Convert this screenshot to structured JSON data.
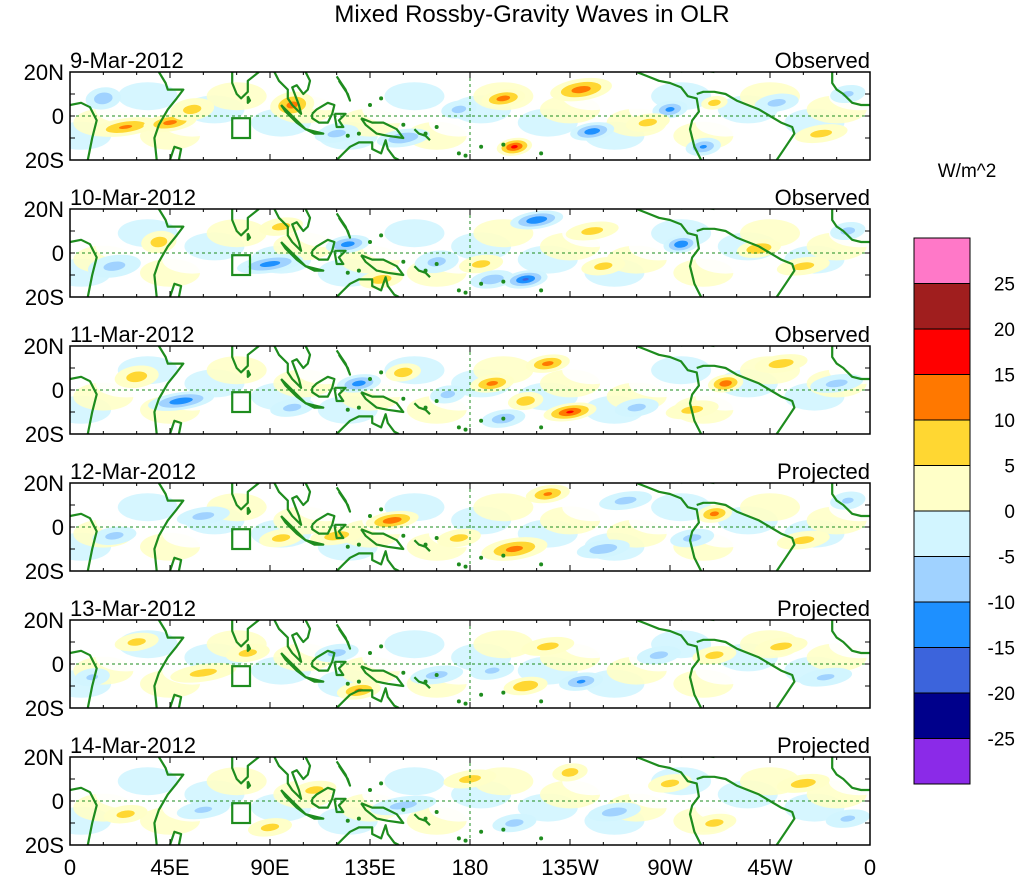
{
  "chart_data": {
    "type": "heatmap",
    "title": "Mixed Rossby-Gravity Waves in OLR",
    "units_label": "W/m^2",
    "x_tick_labels": [
      "0",
      "45E",
      "90E",
      "135E",
      "180",
      "135W",
      "90W",
      "45W",
      "0"
    ],
    "x_ticks_deg": [
      0,
      45,
      90,
      135,
      180,
      225,
      270,
      315,
      360
    ],
    "y_tick_labels": [
      "20N",
      "0",
      "20S"
    ],
    "y_ticks_deg": [
      20,
      0,
      -20
    ],
    "xlim": [
      0,
      360
    ],
    "ylim": [
      -20,
      20
    ],
    "colorbar": {
      "levels": [
        -25,
        -20,
        -15,
        -10,
        -5,
        0,
        5,
        10,
        15,
        20,
        25
      ],
      "tick_labels": [
        "25",
        "20",
        "15",
        "10",
        "5",
        "0",
        "-5",
        "-10",
        "-15",
        "-20",
        "-25"
      ],
      "colors": [
        "#8b2ae8",
        "#00008b",
        "#3c64dc",
        "#1e90ff",
        "#a0d2ff",
        "#d2f5ff",
        "#ffffc8",
        "#ffd732",
        "#ff7800",
        "#ff0000",
        "#a01e1e",
        "#ff78c8"
      ]
    },
    "panels": [
      {
        "date": "9-Mar-2012",
        "label": "Observed",
        "blobs": [
          [
            100,
            5,
            10,
            6,
            11
          ],
          [
            150,
            -10,
            12,
            4,
            -9
          ],
          [
            195,
            8,
            10,
            4,
            12
          ],
          [
            200,
            -14,
            8,
            4,
            16
          ],
          [
            230,
            12,
            14,
            5,
            12
          ],
          [
            235,
            -7,
            10,
            4,
            -13
          ],
          [
            270,
            3,
            8,
            4,
            -11
          ],
          [
            285,
            -14,
            8,
            4,
            -10
          ],
          [
            290,
            6,
            6,
            3,
            7
          ],
          [
            25,
            -5,
            15,
            4,
            10
          ],
          [
            45,
            -3,
            12,
            4,
            11
          ],
          [
            15,
            8,
            8,
            5,
            -8
          ],
          [
            55,
            3,
            10,
            5,
            6
          ],
          [
            120,
            -8,
            10,
            4,
            -6
          ],
          [
            175,
            3,
            8,
            4,
            -6
          ],
          [
            260,
            -3,
            10,
            4,
            6
          ],
          [
            318,
            6,
            10,
            4,
            -6
          ],
          [
            338,
            -8,
            12,
            4,
            6
          ],
          [
            350,
            10,
            8,
            4,
            -5
          ]
        ]
      },
      {
        "date": "10-Mar-2012",
        "label": "Observed",
        "blobs": [
          [
            90,
            -5,
            15,
            4,
            -12
          ],
          [
            125,
            4,
            10,
            4,
            -12
          ],
          [
            165,
            -4,
            10,
            5,
            -6
          ],
          [
            185,
            -5,
            10,
            4,
            6
          ],
          [
            190,
            -12,
            10,
            4,
            -8
          ],
          [
            205,
            -12,
            10,
            4,
            -15
          ],
          [
            210,
            15,
            12,
            4,
            -14
          ],
          [
            240,
            -6,
            10,
            4,
            6
          ],
          [
            275,
            4,
            8,
            4,
            -14
          ],
          [
            310,
            2,
            10,
            4,
            9
          ],
          [
            40,
            5,
            8,
            5,
            7
          ],
          [
            20,
            -6,
            12,
            5,
            -6
          ],
          [
            95,
            12,
            10,
            4,
            6
          ],
          [
            140,
            -12,
            10,
            4,
            7
          ],
          [
            235,
            10,
            12,
            4,
            6
          ],
          [
            330,
            -6,
            12,
            4,
            6
          ],
          [
            350,
            10,
            8,
            4,
            -6
          ]
        ]
      },
      {
        "date": "11-Mar-2012",
        "label": "Observed",
        "blobs": [
          [
            50,
            -5,
            15,
            4,
            -13
          ],
          [
            30,
            6,
            10,
            5,
            7
          ],
          [
            130,
            3,
            10,
            4,
            -12
          ],
          [
            150,
            8,
            8,
            4,
            8
          ],
          [
            190,
            3,
            10,
            4,
            11
          ],
          [
            205,
            -5,
            8,
            4,
            8
          ],
          [
            215,
            12,
            10,
            4,
            11
          ],
          [
            225,
            -10,
            12,
            4,
            15
          ],
          [
            295,
            3,
            8,
            4,
            13
          ],
          [
            280,
            -9,
            12,
            4,
            6
          ],
          [
            255,
            -8,
            10,
            4,
            -6
          ],
          [
            320,
            12,
            12,
            4,
            7
          ],
          [
            100,
            -8,
            10,
            4,
            -6
          ],
          [
            195,
            -13,
            10,
            4,
            -8
          ],
          [
            170,
            -2,
            8,
            4,
            -6
          ],
          [
            345,
            3,
            12,
            4,
            -6
          ]
        ]
      },
      {
        "date": "12-Mar-2012",
        "label": "Projected",
        "blobs": [
          [
            145,
            3,
            12,
            4,
            13
          ],
          [
            200,
            -10,
            15,
            5,
            11
          ],
          [
            215,
            15,
            10,
            4,
            10
          ],
          [
            290,
            6,
            8,
            4,
            11
          ],
          [
            120,
            -4,
            12,
            4,
            7
          ],
          [
            95,
            -5,
            10,
            4,
            6
          ],
          [
            175,
            -5,
            10,
            4,
            6
          ],
          [
            240,
            -10,
            12,
            4,
            -8
          ],
          [
            250,
            12,
            12,
            4,
            -6
          ],
          [
            280,
            -5,
            10,
            4,
            -6
          ],
          [
            330,
            -6,
            12,
            4,
            6
          ],
          [
            60,
            5,
            12,
            4,
            -6
          ],
          [
            20,
            -4,
            10,
            4,
            -6
          ],
          [
            350,
            12,
            8,
            4,
            -5
          ]
        ]
      },
      {
        "date": "13-Mar-2012",
        "label": "Projected",
        "blobs": [
          [
            130,
            -12,
            10,
            4,
            10
          ],
          [
            205,
            -10,
            10,
            4,
            9
          ],
          [
            230,
            -8,
            10,
            4,
            -10
          ],
          [
            80,
            5,
            10,
            4,
            6
          ],
          [
            60,
            -4,
            15,
            4,
            6
          ],
          [
            120,
            5,
            10,
            4,
            -6
          ],
          [
            165,
            -5,
            12,
            4,
            -6
          ],
          [
            190,
            -3,
            10,
            4,
            -5
          ],
          [
            215,
            8,
            12,
            4,
            6
          ],
          [
            265,
            4,
            10,
            4,
            -6
          ],
          [
            290,
            4,
            10,
            4,
            6
          ],
          [
            320,
            8,
            12,
            4,
            6
          ],
          [
            340,
            -6,
            12,
            4,
            -5
          ],
          [
            30,
            10,
            10,
            4,
            6
          ],
          [
            10,
            -6,
            8,
            4,
            -5
          ]
        ]
      },
      {
        "date": "14-Mar-2012",
        "label": "Projected",
        "blobs": [
          [
            225,
            13,
            8,
            4,
            7
          ],
          [
            245,
            -5,
            12,
            4,
            -7
          ],
          [
            270,
            8,
            10,
            4,
            6
          ],
          [
            330,
            8,
            12,
            4,
            7
          ],
          [
            25,
            -6,
            10,
            4,
            6
          ],
          [
            150,
            -2,
            15,
            4,
            -6
          ],
          [
            110,
            5,
            10,
            4,
            6
          ],
          [
            180,
            10,
            12,
            4,
            6
          ],
          [
            200,
            -10,
            10,
            4,
            -6
          ],
          [
            290,
            -10,
            10,
            4,
            6
          ],
          [
            60,
            -4,
            12,
            4,
            -5
          ],
          [
            350,
            -8,
            10,
            4,
            -5
          ],
          [
            90,
            -12,
            10,
            4,
            6
          ]
        ]
      }
    ]
  }
}
